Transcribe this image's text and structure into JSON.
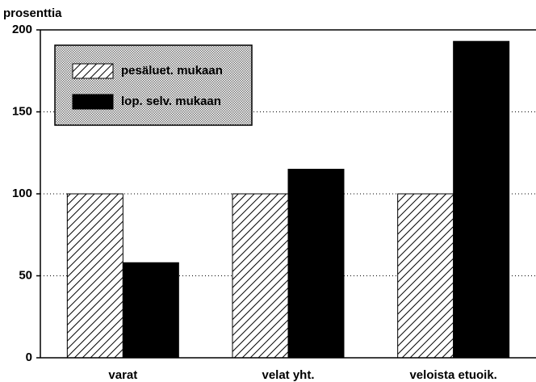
{
  "chart_data": {
    "type": "bar",
    "y_label": "prosenttia",
    "categories": [
      "varat",
      "velat yht.",
      "veloista etuoik."
    ],
    "series": [
      {
        "name": "pesäluet. mukaan",
        "color": "#000000",
        "pattern": "hatch",
        "values": [
          100,
          100,
          100
        ]
      },
      {
        "name": "lop. selv. mukaan",
        "color": "#000000",
        "pattern": "solid",
        "values": [
          58,
          115,
          193
        ]
      }
    ],
    "ylim": [
      0,
      200
    ],
    "yticks": [
      0,
      50,
      100,
      150,
      200
    ],
    "grid": true,
    "legend": "upper left"
  }
}
